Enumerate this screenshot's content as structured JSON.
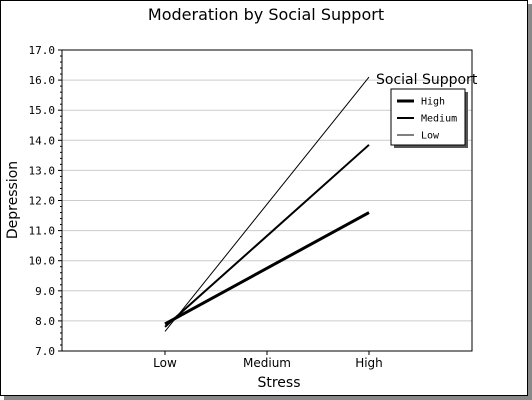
{
  "chart_data": {
    "type": "line",
    "title": "Moderation by Social Support",
    "xlabel": "Stress",
    "ylabel": "Depression",
    "categories": [
      "Low",
      "Medium",
      "High"
    ],
    "ylim": [
      7.0,
      17.0
    ],
    "yticks": [
      "7.0",
      "8.0",
      "9.0",
      "10.0",
      "11.0",
      "12.0",
      "13.0",
      "14.0",
      "15.0",
      "16.0",
      "17.0"
    ],
    "grid": true,
    "legend": {
      "title": "Social Support",
      "position": "top-right"
    },
    "series": [
      {
        "name": "High",
        "x": [
          "Low",
          "High"
        ],
        "values": [
          7.9,
          11.6
        ],
        "stroke_width": 3
      },
      {
        "name": "Medium",
        "x": [
          "Low",
          "High"
        ],
        "values": [
          7.8,
          13.85
        ],
        "stroke_width": 2
      },
      {
        "name": "Low",
        "x": [
          "Low",
          "High"
        ],
        "values": [
          7.65,
          16.1
        ],
        "stroke_width": 1
      }
    ]
  }
}
